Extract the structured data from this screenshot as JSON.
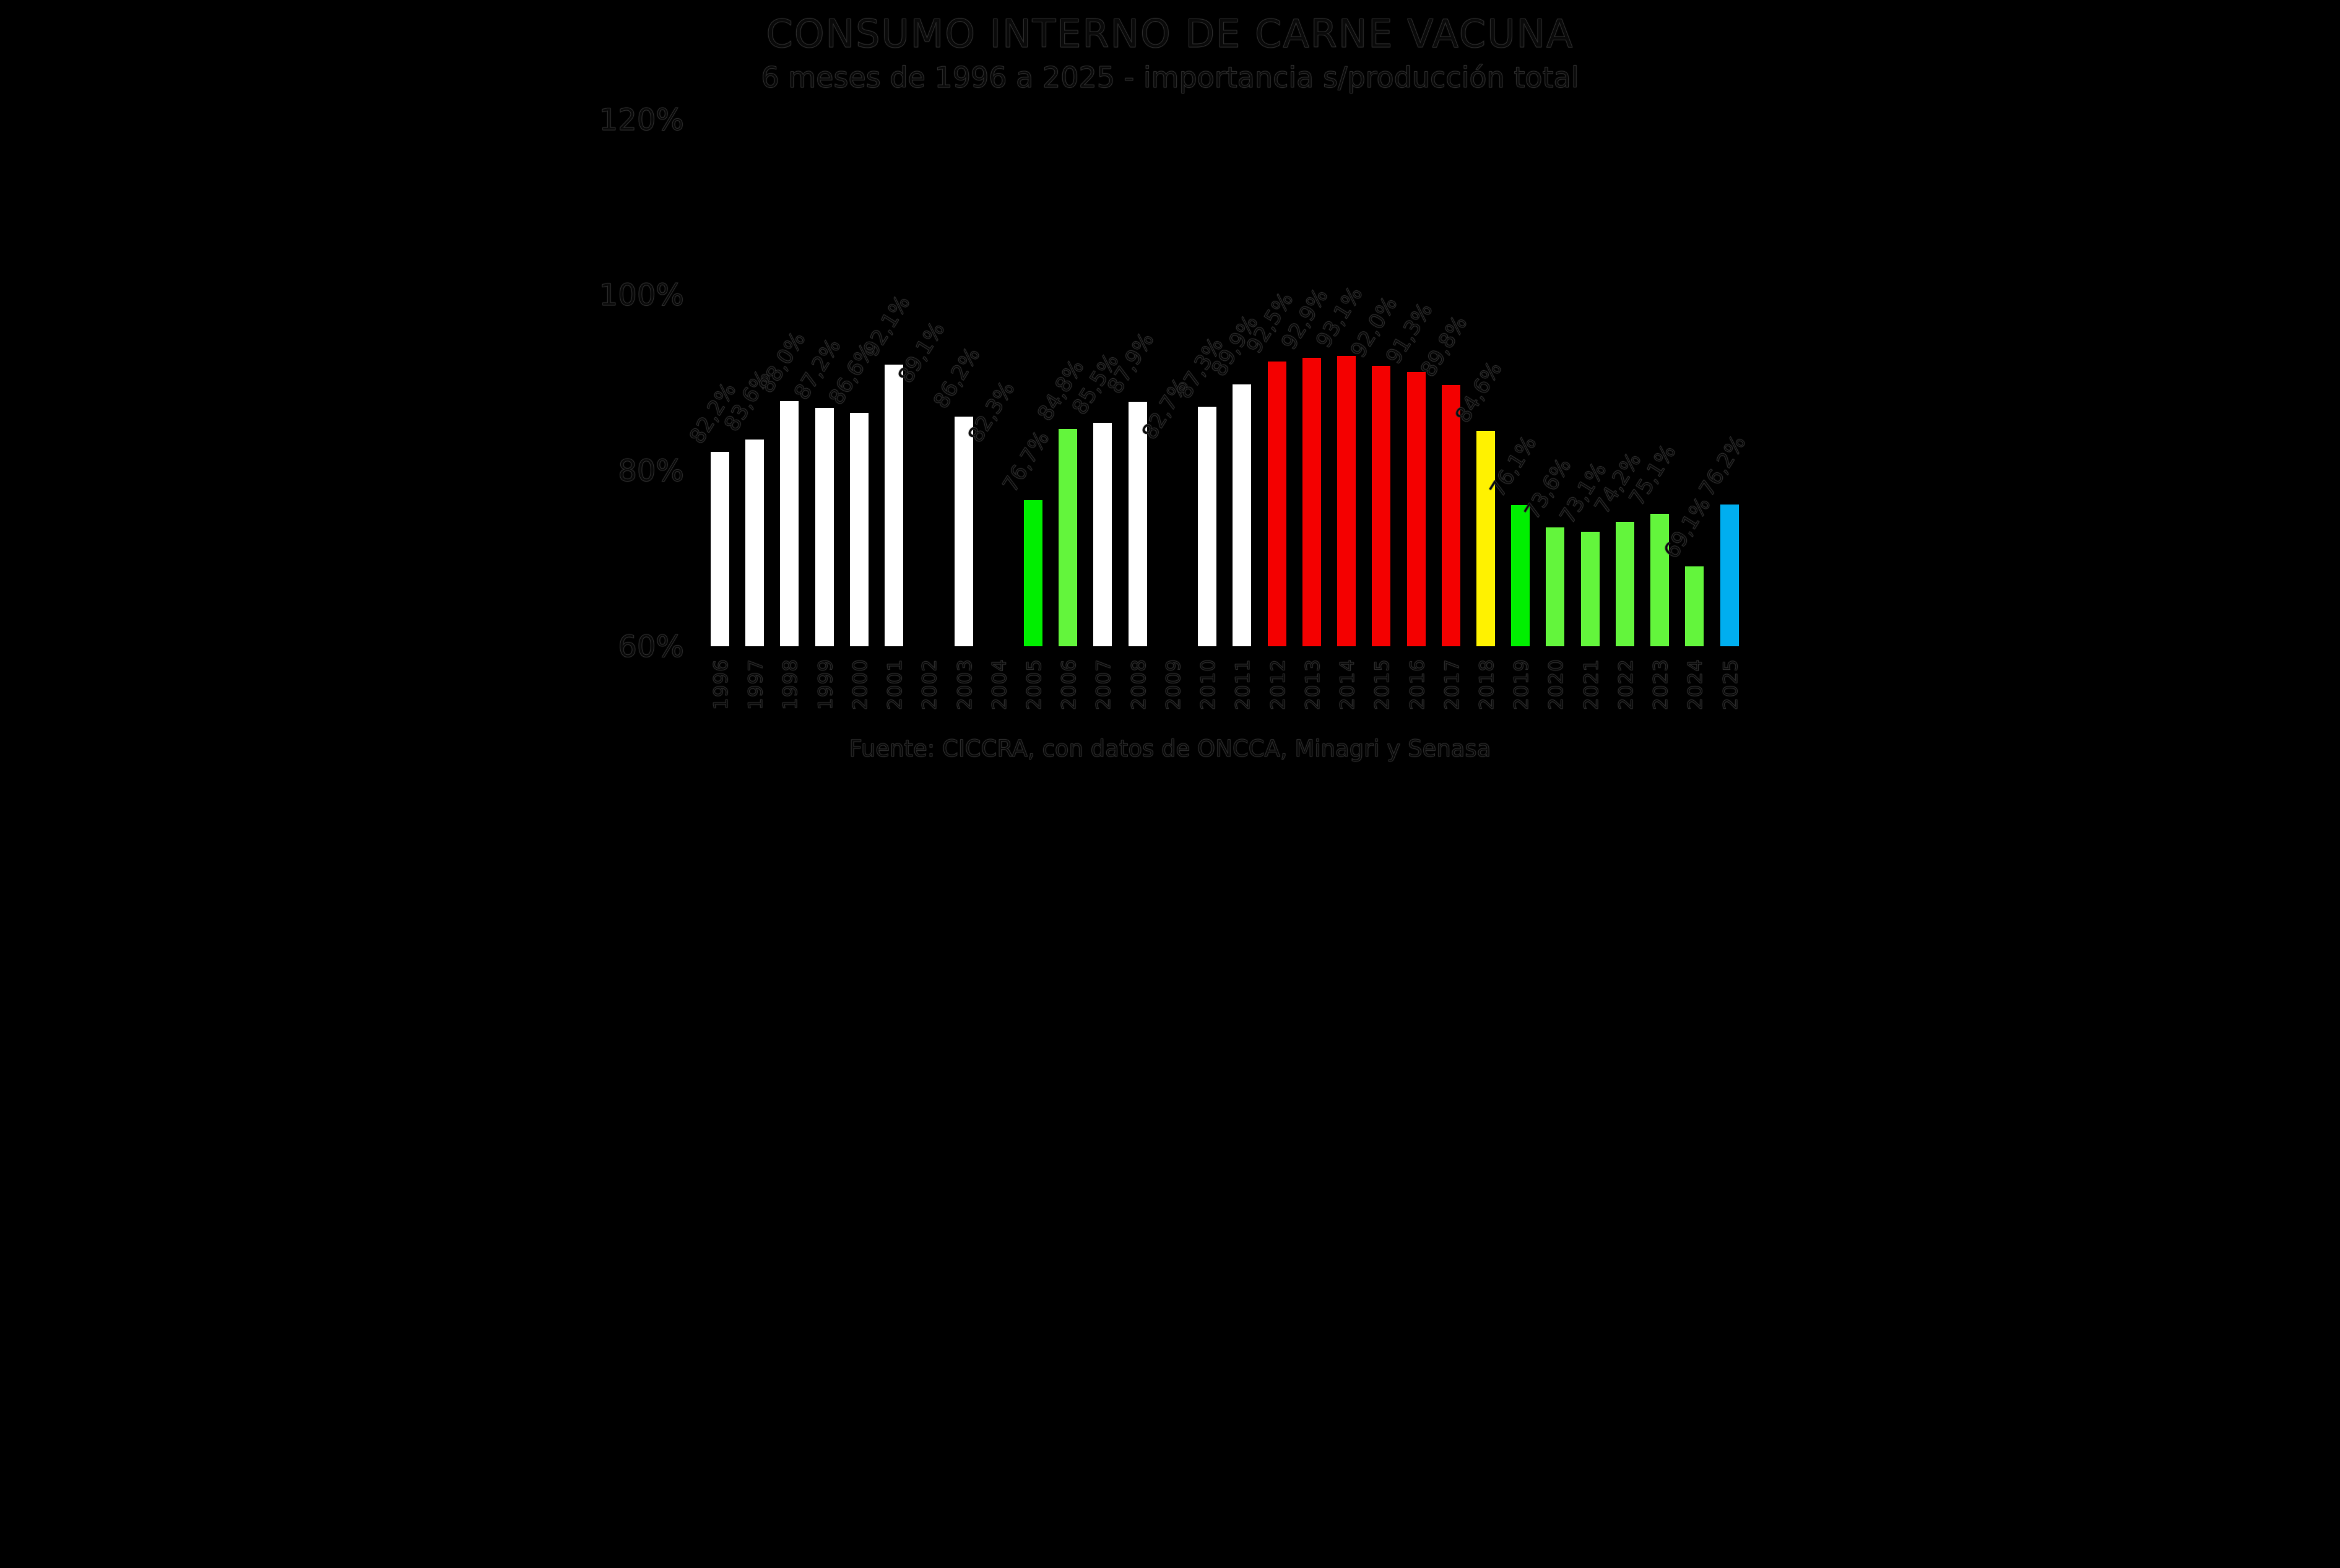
{
  "title": "CONSUMO INTERNO DE CARNE VACUNA",
  "subtitle": "6 meses de 1996 a 2025 - importancia s/producción total",
  "caption": "Fuente: CICCRA, con datos de ONCCA, Minagri y Senasa",
  "chart_data": {
    "type": "bar",
    "title": "CONSUMO INTERNO DE CARNE VACUNA",
    "subtitle": "6 meses de 1996 a 2025 - importancia s/producción total",
    "source_note": "Fuente: CICCRA, con datos de ONCCA, Minagri y Senasa",
    "background": "#000000",
    "grid": false,
    "legend": "none",
    "xlabel": "",
    "ylabel": "",
    "ylim": [
      60,
      120
    ],
    "ytick_labels": [
      "120%",
      "100%",
      "80%",
      "60%"
    ],
    "ytick_values": [
      120,
      100,
      80,
      60
    ],
    "categories": [
      1996,
      1997,
      1998,
      1999,
      2000,
      2001,
      2002,
      2003,
      2004,
      2005,
      2006,
      2007,
      2008,
      2009,
      2010,
      2011,
      2012,
      2013,
      2014,
      2015,
      2016,
      2017,
      2018,
      2019,
      2020,
      2021,
      2022,
      2023,
      2024,
      2025
    ],
    "values": [
      82.2,
      83.6,
      88.0,
      87.2,
      86.6,
      92.1,
      89.1,
      86.2,
      82.3,
      76.7,
      84.8,
      85.5,
      87.9,
      82.7,
      87.3,
      89.9,
      92.5,
      92.9,
      93.1,
      92.0,
      91.3,
      89.8,
      84.6,
      76.1,
      73.6,
      73.1,
      74.2,
      75.1,
      69.1,
      76.2
    ],
    "value_labels": [
      "82,2%",
      "83,6%",
      "88,0%",
      "87,2%",
      "86,6%",
      "92,1%",
      "89,1%",
      "86,2%",
      "82,3%",
      "76,7%",
      "84,8%",
      "85,5%",
      "87,9%",
      "82,7%",
      "87,3%",
      "89,9%",
      "92,5%",
      "92,9%",
      "93,1%",
      "92,0%",
      "91,3%",
      "89,8%",
      "84,6%",
      "76,1%",
      "73,6%",
      "73,1%",
      "74,2%",
      "75,1%",
      "69,1%",
      "76,2%"
    ],
    "bar_colors": [
      "#ffffff",
      "#ffffff",
      "#ffffff",
      "#ffffff",
      "#ffffff",
      "#ffffff",
      "#000000",
      "#ffffff",
      "#000000",
      "#00ef00",
      "#63f53c",
      "#ffffff",
      "#ffffff",
      "#000000",
      "#ffffff",
      "#ffffff",
      "#f40000",
      "#f40000",
      "#f40000",
      "#f40000",
      "#f40000",
      "#f40000",
      "#fff200",
      "#00ef00",
      "#63f53c",
      "#63f53c",
      "#63f53c",
      "#63f53c",
      "#63f53c",
      "#00aeef"
    ],
    "palette": {
      "white_bar": "#ffffff",
      "bright_green_bar": "#00ef00",
      "light_green_bar": "#63f53c",
      "red_bar": "#f40000",
      "yellow_bar": "#fff200",
      "blue_bar": "#00aeef",
      "hidden_bar": "#000000",
      "text_ghost": "#0a0a0a"
    }
  }
}
